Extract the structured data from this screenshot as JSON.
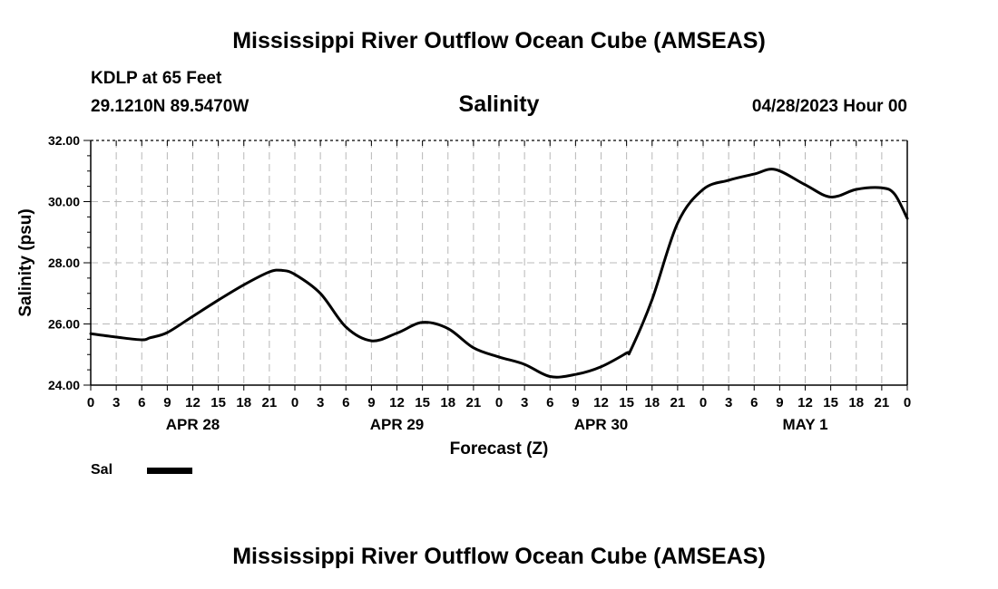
{
  "header": {
    "title": "Mississippi River Outflow Ocean Cube (AMSEAS)",
    "station": "KDLP at 65 Feet",
    "location": "29.1210N  89.5470W",
    "datetime": "04/28/2023 Hour 00"
  },
  "footer": {
    "title": "Mississippi River Outflow Ocean Cube (AMSEAS)"
  },
  "legend": {
    "series_label": "Sal",
    "color": "#000000"
  },
  "chart_data": {
    "type": "line",
    "title": "Salinity",
    "xlabel": "Forecast (Z)",
    "ylabel": "Salinity (psu)",
    "x_unit": "forecast hours",
    "xlim": [
      0,
      96
    ],
    "ylim": [
      24,
      32
    ],
    "yticks": [
      24,
      26,
      28,
      30,
      32
    ],
    "ytick_labels": [
      "24.00",
      "26.00",
      "28.00",
      "30.00",
      "32.00"
    ],
    "xticks": [
      0,
      3,
      6,
      9,
      12,
      15,
      18,
      21,
      24,
      27,
      30,
      33,
      36,
      39,
      42,
      45,
      48,
      51,
      54,
      57,
      60,
      63,
      66,
      69,
      72,
      75,
      78,
      81,
      84,
      87,
      90,
      93,
      96
    ],
    "xtick_labels": [
      "0",
      "3",
      "6",
      "9",
      "12",
      "15",
      "18",
      "21",
      "0",
      "3",
      "6",
      "9",
      "12",
      "15",
      "18",
      "21",
      "0",
      "3",
      "6",
      "9",
      "12",
      "15",
      "18",
      "21",
      "0",
      "3",
      "6",
      "9",
      "12",
      "15",
      "18",
      "21",
      "0"
    ],
    "date_labels": [
      {
        "x": 12,
        "label": "APR 28"
      },
      {
        "x": 36,
        "label": "APR 29"
      },
      {
        "x": 60,
        "label": "APR 30"
      },
      {
        "x": 84,
        "label": "MAY 1"
      }
    ],
    "grid": true,
    "series": [
      {
        "name": "Sal",
        "x": [
          0,
          3,
          6,
          7,
          9,
          12,
          15,
          18,
          21,
          22.5,
          24,
          27,
          30,
          33,
          36,
          39,
          42,
          45,
          48,
          51,
          54,
          57,
          60,
          63,
          63.5,
          66,
          69,
          72,
          75,
          78,
          80.5,
          84,
          87,
          90,
          93,
          94.5,
          96
        ],
        "values": [
          25.68,
          25.57,
          25.48,
          25.55,
          25.72,
          26.25,
          26.78,
          27.28,
          27.7,
          27.75,
          27.62,
          27.0,
          25.9,
          25.45,
          25.7,
          26.05,
          25.85,
          25.22,
          24.92,
          24.68,
          24.28,
          24.35,
          24.6,
          25.05,
          25.15,
          26.8,
          29.3,
          30.4,
          30.7,
          30.9,
          31.05,
          30.55,
          30.15,
          30.4,
          30.45,
          30.25,
          29.45
        ]
      }
    ]
  }
}
